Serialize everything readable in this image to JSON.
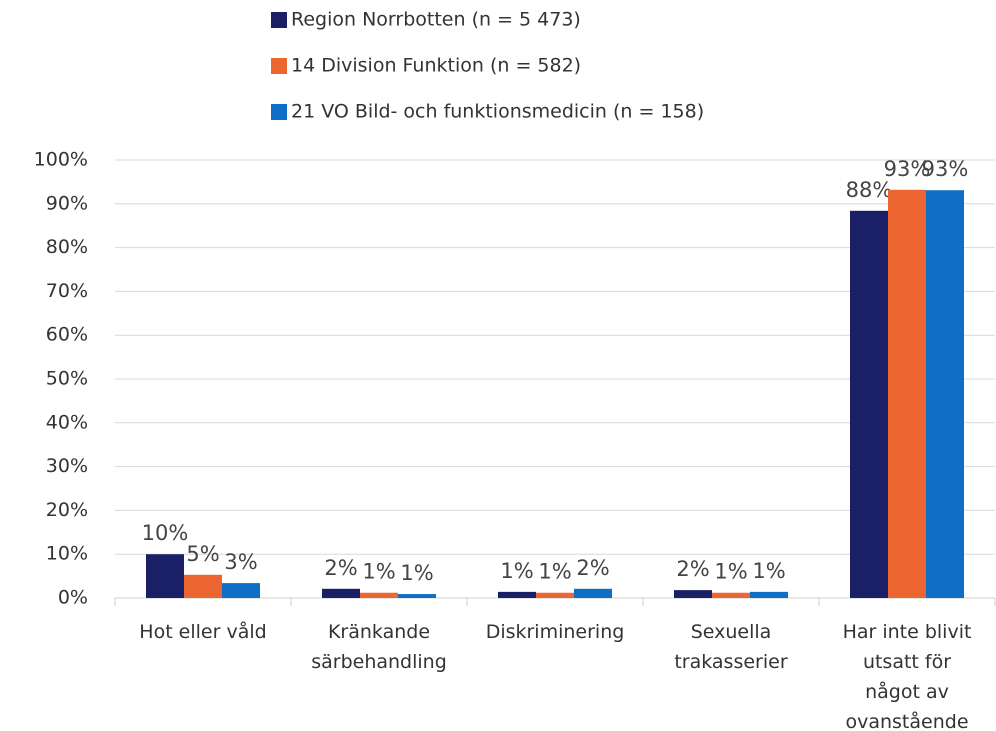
{
  "chart_data": {
    "type": "bar",
    "categories": [
      "Hot eller våld",
      "Kränkande särbehandling",
      "Diskriminering",
      "Sexuella trakasserier",
      "Har inte blivit utsatt för något av ovanstående"
    ],
    "series": [
      {
        "name": "Region Norrbotten (n = 5 473)",
        "color": "#1b1f66",
        "values": [
          10.0,
          2.1,
          1.4,
          1.8,
          88.4
        ],
        "value_labels": [
          "10%",
          "2%",
          "1%",
          "2%",
          "88%"
        ]
      },
      {
        "name": "14 Division Funktion (n = 582)",
        "color": "#eb6630",
        "values": [
          5.3,
          1.2,
          1.2,
          1.2,
          93.2
        ],
        "value_labels": [
          "5%",
          "1%",
          "1%",
          "1%",
          "93%"
        ]
      },
      {
        "name": "21 VO Bild- och funktionsmedicin (n = 158)",
        "color": "#0f6fc6",
        "values": [
          3.4,
          0.9,
          2.1,
          1.4,
          93.1
        ],
        "value_labels": [
          "3%",
          "1%",
          "2%",
          "1%",
          "93%"
        ]
      }
    ],
    "ylim": [
      0,
      100
    ],
    "yticks": [
      {
        "value": 0,
        "label": "0%"
      },
      {
        "value": 10,
        "label": "10%"
      },
      {
        "value": 20,
        "label": "20%"
      },
      {
        "value": 30,
        "label": "30%"
      },
      {
        "value": 40,
        "label": "40%"
      },
      {
        "value": 50,
        "label": "50%"
      },
      {
        "value": 60,
        "label": "60%"
      },
      {
        "value": 70,
        "label": "70%"
      },
      {
        "value": 80,
        "label": "80%"
      },
      {
        "value": 90,
        "label": "90%"
      },
      {
        "value": 100,
        "label": "100%"
      }
    ],
    "grid": true,
    "legend": "top"
  }
}
